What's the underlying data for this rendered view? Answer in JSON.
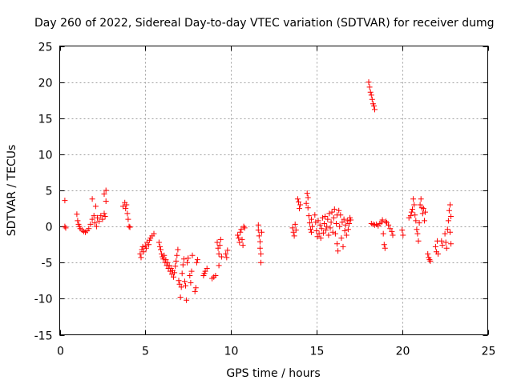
{
  "chart_data": {
    "type": "scatter",
    "title": "Day 260 of 2022, Sidereal Day-to-day VTEC variation (SDTVAR) for receiver dumg",
    "xlabel": "GPS time / hours",
    "ylabel": "SDTVAR / TECUs",
    "xlim": [
      0,
      25
    ],
    "ylim": [
      -15,
      25
    ],
    "xticks": [
      0,
      5,
      10,
      15,
      20,
      25
    ],
    "yticks": [
      -15,
      -10,
      -5,
      0,
      5,
      10,
      15,
      20,
      25
    ],
    "xtick_labels": [
      "0",
      "5",
      "10",
      "15",
      "20",
      "25"
    ],
    "ytick_labels": [
      "-15",
      "-10",
      "-5",
      "0",
      "5",
      "10",
      "15",
      "20",
      "25"
    ],
    "grid": true,
    "marker": "plus",
    "color": "#ff0000",
    "series": [
      {
        "name": "SDTVAR",
        "points": [
          [
            0.3,
            3.6
          ],
          [
            0.3,
            0.0
          ],
          [
            0.35,
            -0.2
          ],
          [
            1.0,
            1.7
          ],
          [
            1.05,
            0.8
          ],
          [
            1.1,
            0.3
          ],
          [
            1.15,
            0.0
          ],
          [
            1.2,
            -0.3
          ],
          [
            1.3,
            -0.5
          ],
          [
            1.4,
            -0.7
          ],
          [
            1.5,
            -0.8
          ],
          [
            1.6,
            -0.6
          ],
          [
            1.7,
            -0.3
          ],
          [
            1.8,
            0.3
          ],
          [
            1.9,
            1.0
          ],
          [
            1.9,
            3.8
          ],
          [
            2.0,
            1.5
          ],
          [
            2.05,
            0.5
          ],
          [
            2.1,
            2.8
          ],
          [
            2.15,
            0.0
          ],
          [
            2.2,
            1.2
          ],
          [
            2.3,
            0.7
          ],
          [
            2.4,
            1.5
          ],
          [
            2.5,
            1.0
          ],
          [
            2.6,
            1.8
          ],
          [
            2.6,
            4.5
          ],
          [
            2.65,
            1.4
          ],
          [
            2.7,
            3.5
          ],
          [
            2.7,
            5.0
          ],
          [
            3.7,
            2.8
          ],
          [
            3.8,
            3.3
          ],
          [
            3.85,
            2.5
          ],
          [
            3.9,
            3.0
          ],
          [
            3.95,
            1.8
          ],
          [
            4.0,
            1.0
          ],
          [
            4.05,
            0.0
          ],
          [
            4.1,
            -0.1
          ],
          [
            4.7,
            -3.8
          ],
          [
            4.75,
            -4.3
          ],
          [
            4.8,
            -3.2
          ],
          [
            4.85,
            -2.8
          ],
          [
            4.9,
            -3.5
          ],
          [
            5.0,
            -2.7
          ],
          [
            5.05,
            -3.0
          ],
          [
            5.1,
            -2.2
          ],
          [
            5.2,
            -2.5
          ],
          [
            5.25,
            -1.9
          ],
          [
            5.3,
            -1.6
          ],
          [
            5.4,
            -1.3
          ],
          [
            5.5,
            -1.0
          ],
          [
            5.8,
            -2.2
          ],
          [
            5.85,
            -2.8
          ],
          [
            5.9,
            -3.2
          ],
          [
            5.95,
            -3.8
          ],
          [
            6.0,
            -4.2
          ],
          [
            6.05,
            -4.5
          ],
          [
            6.1,
            -4.0
          ],
          [
            6.15,
            -5.0
          ],
          [
            6.2,
            -4.6
          ],
          [
            6.25,
            -5.4
          ],
          [
            6.3,
            -5.0
          ],
          [
            6.35,
            -5.8
          ],
          [
            6.4,
            -5.4
          ],
          [
            6.45,
            -6.2
          ],
          [
            6.5,
            -5.8
          ],
          [
            6.55,
            -6.6
          ],
          [
            6.6,
            -6.1
          ],
          [
            6.65,
            -7.0
          ],
          [
            6.7,
            -6.4
          ],
          [
            6.75,
            -5.5
          ],
          [
            6.8,
            -4.8
          ],
          [
            6.85,
            -4.0
          ],
          [
            6.9,
            -3.2
          ],
          [
            6.95,
            -7.5
          ],
          [
            7.0,
            -8.0
          ],
          [
            7.05,
            -9.8
          ],
          [
            7.1,
            -8.4
          ],
          [
            7.15,
            -6.5
          ],
          [
            7.2,
            -5.3
          ],
          [
            7.25,
            -4.5
          ],
          [
            7.3,
            -7.6
          ],
          [
            7.35,
            -8.2
          ],
          [
            7.4,
            -10.2
          ],
          [
            7.45,
            -5.0
          ],
          [
            7.5,
            -4.4
          ],
          [
            7.6,
            -6.8
          ],
          [
            7.65,
            -7.8
          ],
          [
            7.7,
            -6.2
          ],
          [
            7.75,
            -4.0
          ],
          [
            7.9,
            -9.0
          ],
          [
            7.95,
            -8.5
          ],
          [
            8.0,
            -5.0
          ],
          [
            8.05,
            -4.6
          ],
          [
            8.4,
            -6.8
          ],
          [
            8.45,
            -6.5
          ],
          [
            8.5,
            -6.2
          ],
          [
            8.6,
            -5.8
          ],
          [
            8.9,
            -7.2
          ],
          [
            9.0,
            -7.0
          ],
          [
            9.1,
            -6.8
          ],
          [
            9.2,
            -2.2
          ],
          [
            9.25,
            -3.0
          ],
          [
            9.3,
            -3.8
          ],
          [
            9.3,
            -5.4
          ],
          [
            9.35,
            -2.6
          ],
          [
            9.4,
            -1.8
          ],
          [
            9.45,
            -4.2
          ],
          [
            9.7,
            -3.8
          ],
          [
            9.75,
            -4.3
          ],
          [
            9.8,
            -3.3
          ],
          [
            10.4,
            -1.2
          ],
          [
            10.45,
            -1.6
          ],
          [
            10.5,
            -2.2
          ],
          [
            10.55,
            -0.8
          ],
          [
            10.6,
            -0.4
          ],
          [
            10.65,
            -1.8
          ],
          [
            10.7,
            -2.6
          ],
          [
            10.75,
            0.0
          ],
          [
            10.8,
            -0.2
          ],
          [
            11.6,
            0.2
          ],
          [
            11.6,
            -0.5
          ],
          [
            11.65,
            -1.3
          ],
          [
            11.7,
            -2.1
          ],
          [
            11.7,
            -3.0
          ],
          [
            11.75,
            -3.8
          ],
          [
            11.75,
            -5.0
          ],
          [
            11.8,
            -0.8
          ],
          [
            13.6,
            -0.2
          ],
          [
            13.65,
            -0.8
          ],
          [
            13.7,
            -1.3
          ],
          [
            13.75,
            0.3
          ],
          [
            13.8,
            -0.5
          ],
          [
            13.9,
            3.8
          ],
          [
            13.95,
            3.4
          ],
          [
            14.0,
            2.5
          ],
          [
            14.05,
            3.0
          ],
          [
            14.4,
            3.2
          ],
          [
            14.45,
            4.6
          ],
          [
            14.5,
            4.0
          ],
          [
            14.5,
            2.6
          ],
          [
            14.55,
            1.5
          ],
          [
            14.6,
            0.5
          ],
          [
            14.65,
            -0.4
          ],
          [
            14.7,
            1.0
          ],
          [
            14.7,
            -0.8
          ],
          [
            14.75,
            0.0
          ],
          [
            14.9,
            1.6
          ],
          [
            14.95,
            0.6
          ],
          [
            15.0,
            -0.6
          ],
          [
            15.05,
            -1.4
          ],
          [
            15.1,
            0.8
          ],
          [
            15.15,
            -1.0
          ],
          [
            15.2,
            0.2
          ],
          [
            15.25,
            -1.6
          ],
          [
            15.3,
            -0.3
          ],
          [
            15.35,
            1.2
          ],
          [
            15.4,
            -0.9
          ],
          [
            15.45,
            0.4
          ],
          [
            15.5,
            1.4
          ],
          [
            15.55,
            -0.5
          ],
          [
            15.6,
            0.0
          ],
          [
            15.65,
            1.0
          ],
          [
            15.7,
            -1.2
          ],
          [
            15.75,
            1.8
          ],
          [
            15.8,
            -0.2
          ],
          [
            15.85,
            0.6
          ],
          [
            15.9,
            2.0
          ],
          [
            15.95,
            -0.8
          ],
          [
            16.0,
            1.2
          ],
          [
            16.05,
            2.4
          ],
          [
            16.1,
            -1.0
          ],
          [
            16.15,
            0.4
          ],
          [
            16.2,
            1.6
          ],
          [
            16.2,
            -2.4
          ],
          [
            16.25,
            -3.4
          ],
          [
            16.3,
            2.2
          ],
          [
            16.35,
            0.0
          ],
          [
            16.4,
            1.6
          ],
          [
            16.45,
            -1.6
          ],
          [
            16.5,
            0.6
          ],
          [
            16.55,
            -2.8
          ],
          [
            16.6,
            1.0
          ],
          [
            16.65,
            -0.6
          ],
          [
            16.7,
            0.2
          ],
          [
            16.75,
            -1.2
          ],
          [
            16.8,
            0.8
          ],
          [
            16.85,
            -0.4
          ],
          [
            16.9,
            0.4
          ],
          [
            16.95,
            1.2
          ],
          [
            17.0,
            0.9
          ],
          [
            18.05,
            20.0
          ],
          [
            18.1,
            19.3
          ],
          [
            18.15,
            18.6
          ],
          [
            18.2,
            18.2
          ],
          [
            18.25,
            17.6
          ],
          [
            18.3,
            17.0
          ],
          [
            18.35,
            16.7
          ],
          [
            18.4,
            16.2
          ],
          [
            18.2,
            0.4
          ],
          [
            18.3,
            0.3
          ],
          [
            18.4,
            0.2
          ],
          [
            18.5,
            0.3
          ],
          [
            18.6,
            0.1
          ],
          [
            18.7,
            0.4
          ],
          [
            18.8,
            0.6
          ],
          [
            18.85,
            0.9
          ],
          [
            18.9,
            -1.0
          ],
          [
            18.95,
            -2.5
          ],
          [
            19.0,
            -3.0
          ],
          [
            19.05,
            0.7
          ],
          [
            19.1,
            0.5
          ],
          [
            19.2,
            0.2
          ],
          [
            19.3,
            -0.3
          ],
          [
            19.4,
            -0.7
          ],
          [
            19.45,
            -1.2
          ],
          [
            20.0,
            -0.5
          ],
          [
            20.05,
            -1.2
          ],
          [
            20.4,
            1.2
          ],
          [
            20.5,
            1.5
          ],
          [
            20.55,
            2.0
          ],
          [
            20.6,
            2.4
          ],
          [
            20.65,
            3.8
          ],
          [
            20.7,
            3.0
          ],
          [
            20.75,
            1.6
          ],
          [
            20.8,
            0.8
          ],
          [
            20.85,
            -0.4
          ],
          [
            20.9,
            -1.0
          ],
          [
            20.95,
            -2.0
          ],
          [
            21.0,
            0.5
          ],
          [
            21.05,
            3.0
          ],
          [
            21.1,
            3.8
          ],
          [
            21.15,
            2.6
          ],
          [
            21.2,
            1.8
          ],
          [
            21.25,
            2.5
          ],
          [
            21.3,
            0.8
          ],
          [
            21.35,
            2.0
          ],
          [
            21.5,
            -3.8
          ],
          [
            21.55,
            -4.3
          ],
          [
            21.6,
            -4.6
          ],
          [
            21.65,
            -4.8
          ],
          [
            21.95,
            -2.8
          ],
          [
            22.0,
            -3.5
          ],
          [
            22.05,
            -2.0
          ],
          [
            22.1,
            -3.8
          ],
          [
            22.3,
            -2.0
          ],
          [
            22.35,
            -2.6
          ],
          [
            22.5,
            -1.0
          ],
          [
            22.55,
            -2.2
          ],
          [
            22.6,
            -3.0
          ],
          [
            22.65,
            -0.4
          ],
          [
            22.7,
            0.8
          ],
          [
            22.75,
            2.2
          ],
          [
            22.8,
            3.0
          ],
          [
            22.8,
            -0.8
          ],
          [
            22.85,
            1.4
          ],
          [
            22.85,
            -2.4
          ]
        ]
      }
    ]
  }
}
